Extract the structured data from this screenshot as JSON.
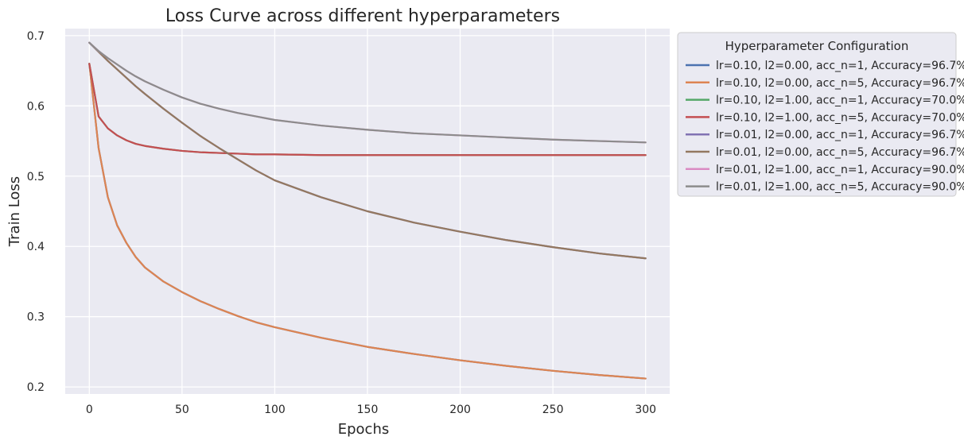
{
  "chart_data": {
    "type": "line",
    "title": "Loss Curve across different hyperparameters",
    "xlabel": "Epochs",
    "ylabel": "Train Loss",
    "xlim": [
      -13,
      313
    ],
    "ylim": [
      0.19,
      0.71
    ],
    "xticks": [
      0,
      50,
      100,
      150,
      200,
      250,
      300
    ],
    "yticks": [
      0.2,
      0.3,
      0.4,
      0.5,
      0.6,
      0.7
    ],
    "grid": true,
    "legend": {
      "title": "Hyperparameter Configuration",
      "placement": "outside-top-right"
    },
    "x": [
      0,
      5,
      10,
      15,
      20,
      25,
      30,
      40,
      50,
      60,
      70,
      80,
      90,
      100,
      125,
      150,
      175,
      200,
      225,
      250,
      275,
      300
    ],
    "series": [
      {
        "name": "lr=0.10, l2=0.00, acc_n=1, Accuracy=96.7%",
        "color": "#4c72b0",
        "values": [
          0.66,
          0.54,
          0.47,
          0.43,
          0.405,
          0.385,
          0.37,
          0.35,
          0.335,
          0.322,
          0.311,
          0.301,
          0.292,
          0.285,
          0.27,
          0.257,
          0.247,
          0.238,
          0.23,
          0.223,
          0.217,
          0.212
        ]
      },
      {
        "name": "lr=0.10, l2=0.00, acc_n=5, Accuracy=96.7%",
        "color": "#dd8452",
        "values": [
          0.66,
          0.54,
          0.47,
          0.43,
          0.405,
          0.385,
          0.37,
          0.35,
          0.335,
          0.322,
          0.311,
          0.301,
          0.292,
          0.285,
          0.27,
          0.257,
          0.247,
          0.238,
          0.23,
          0.223,
          0.217,
          0.212
        ]
      },
      {
        "name": "lr=0.10, l2=1.00, acc_n=1, Accuracy=70.0%",
        "color": "#55a868",
        "values": [
          0.66,
          0.585,
          0.568,
          0.558,
          0.551,
          0.546,
          0.543,
          0.539,
          0.536,
          0.534,
          0.533,
          0.532,
          0.531,
          0.531,
          0.53,
          0.53,
          0.53,
          0.53,
          0.53,
          0.53,
          0.53,
          0.53
        ]
      },
      {
        "name": "lr=0.10, l2=1.00, acc_n=5, Accuracy=70.0%",
        "color": "#c44e52",
        "values": [
          0.66,
          0.585,
          0.568,
          0.558,
          0.551,
          0.546,
          0.543,
          0.539,
          0.536,
          0.534,
          0.533,
          0.532,
          0.531,
          0.531,
          0.53,
          0.53,
          0.53,
          0.53,
          0.53,
          0.53,
          0.53,
          0.53
        ]
      },
      {
        "name": "lr=0.01, l2=0.00, acc_n=1, Accuracy=96.7%",
        "color": "#8172b3",
        "values": [
          0.69,
          0.677,
          0.664,
          0.652,
          0.64,
          0.628,
          0.617,
          0.596,
          0.576,
          0.557,
          0.54,
          0.524,
          0.508,
          0.494,
          0.47,
          0.45,
          0.434,
          0.421,
          0.409,
          0.399,
          0.39,
          0.383
        ]
      },
      {
        "name": "lr=0.01, l2=0.00, acc_n=5, Accuracy=96.7%",
        "color": "#937860",
        "values": [
          0.69,
          0.677,
          0.664,
          0.652,
          0.64,
          0.628,
          0.617,
          0.596,
          0.576,
          0.557,
          0.54,
          0.524,
          0.508,
          0.494,
          0.47,
          0.45,
          0.434,
          0.421,
          0.409,
          0.399,
          0.39,
          0.383
        ]
      },
      {
        "name": "lr=0.01, l2=1.00, acc_n=1, Accuracy=90.0%",
        "color": "#da8bc3",
        "values": [
          0.69,
          0.678,
          0.668,
          0.659,
          0.65,
          0.642,
          0.635,
          0.623,
          0.612,
          0.603,
          0.596,
          0.59,
          0.585,
          0.58,
          0.572,
          0.566,
          0.561,
          0.558,
          0.555,
          0.552,
          0.55,
          0.548
        ]
      },
      {
        "name": "lr=0.01, l2=1.00, acc_n=5, Accuracy=90.0%",
        "color": "#8c8c8c",
        "values": [
          0.69,
          0.678,
          0.668,
          0.659,
          0.65,
          0.642,
          0.635,
          0.623,
          0.612,
          0.603,
          0.596,
          0.59,
          0.585,
          0.58,
          0.572,
          0.566,
          0.561,
          0.558,
          0.555,
          0.552,
          0.55,
          0.548
        ]
      }
    ]
  }
}
